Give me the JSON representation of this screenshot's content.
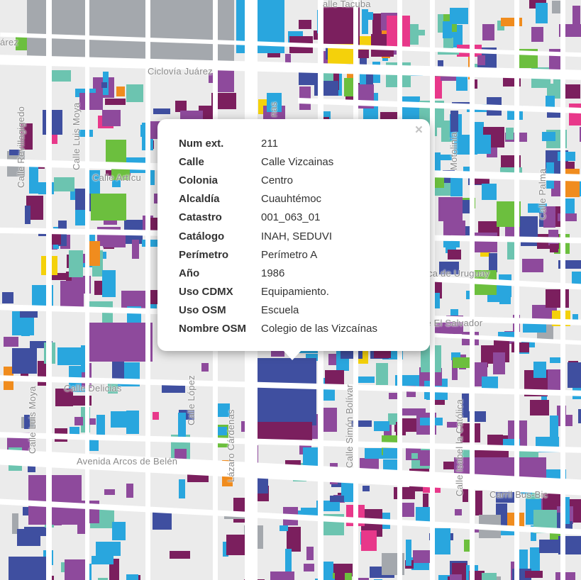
{
  "map": {
    "street_labels": [
      {
        "text": "alle Tacuba",
        "rot": 0
      },
      {
        "text": "árez",
        "rot": 0
      },
      {
        "text": "Ciclovía Juárez",
        "rot": 0
      },
      {
        "text": "Calle Revillagigedo",
        "rot": -90
      },
      {
        "text": "Calle Luis Moya",
        "rot": -90
      },
      {
        "text": "Calle Artícu",
        "rot": 0
      },
      {
        "text": "Calle Delicias",
        "rot": 0
      },
      {
        "text": "Calle Luis Moya",
        "rot": -90
      },
      {
        "text": "Calle López",
        "rot": -90
      },
      {
        "text": "Lázaro Cárdenas",
        "rot": -90
      },
      {
        "text": "Avenida Arcos de Belén",
        "rot": 0
      },
      {
        "text": "Carril Bus-Bic",
        "rot": 0
      },
      {
        "text": "Calle Isabel la Católica",
        "rot": -90
      },
      {
        "text": "Calle Simón Bolívar",
        "rot": -90
      },
      {
        "text": "ica de Uruguay",
        "rot": 0
      },
      {
        "text": "ca de El Salvador",
        "rot": 0
      },
      {
        "text": "Calle Palma",
        "rot": -90
      },
      {
        "text": "Motolinia",
        "rot": -90
      },
      {
        "text": "nas",
        "rot": -90
      }
    ],
    "palette": {
      "purple": "#8e4a9c",
      "dark_purple": "#7b1f5e",
      "light_blue": "#29a6de",
      "dark_blue": "#3f4fa0",
      "teal": "#6cc4b0",
      "green": "#6cbf3e",
      "orange": "#f08c1e",
      "yellow": "#f4d10b",
      "pink": "#e8388a",
      "gray": "#a4a8ad"
    }
  },
  "popup": {
    "close_label": "×",
    "rows": [
      {
        "key": "Num ext.",
        "value": "211"
      },
      {
        "key": "Calle",
        "value": "Calle Vizcainas"
      },
      {
        "key": "Colonia",
        "value": "Centro"
      },
      {
        "key": "Alcaldía",
        "value": "Cuauhtémoc"
      },
      {
        "key": "Catastro",
        "value": "001_063_01"
      },
      {
        "key": "Catálogo",
        "value": "INAH, SEDUVI"
      },
      {
        "key": "Perímetro",
        "value": "Perímetro A"
      },
      {
        "key": "Año",
        "value": "1986"
      },
      {
        "key": "Uso CDMX",
        "value": "Equipamiento."
      },
      {
        "key": "Uso OSM",
        "value": "Escuela"
      },
      {
        "key": "Nombre OSM",
        "value": "Colegio de las Vizcaínas"
      }
    ]
  }
}
